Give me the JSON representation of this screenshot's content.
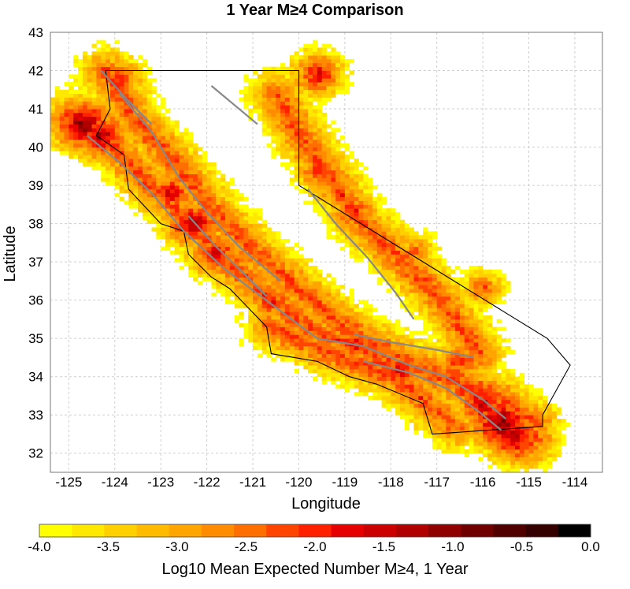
{
  "chart_data": {
    "type": "heatmap",
    "title": "1 Year M≥4 Comparison",
    "xlabel": "Longitude",
    "ylabel": "Latitude",
    "xlim": [
      -125.4,
      -113.4
    ],
    "ylim": [
      31.5,
      43.0
    ],
    "x_ticks": [
      "-125",
      "-124",
      "-123",
      "-122",
      "-121",
      "-120",
      "-119",
      "-118",
      "-117",
      "-116",
      "-115",
      "-114"
    ],
    "y_ticks": [
      "32",
      "33",
      "34",
      "35",
      "36",
      "37",
      "38",
      "39",
      "40",
      "41",
      "42",
      "43"
    ],
    "x_tick_values": [
      -125,
      -124,
      -123,
      -122,
      -121,
      -120,
      -119,
      -118,
      -117,
      -116,
      -115,
      -114
    ],
    "y_tick_values": [
      32,
      33,
      34,
      35,
      36,
      37,
      38,
      39,
      40,
      41,
      42,
      43
    ],
    "grid": true,
    "colorbar": {
      "label": "Log10 Mean Expected Number M≥4, 1 Year",
      "range": [
        -4.0,
        0.0
      ],
      "ticks": [
        "-4.0",
        "-3.5",
        "-3.0",
        "-2.5",
        "-2.0",
        "-1.5",
        "-1.0",
        "-0.5",
        "0.0"
      ],
      "tick_values": [
        -4.0,
        -3.5,
        -3.0,
        -2.5,
        -2.0,
        -1.5,
        -1.0,
        -0.5,
        0.0
      ],
      "colors": [
        "#ffff00",
        "#ffe800",
        "#ffd000",
        "#ffbb00",
        "#ffa500",
        "#ff8c00",
        "#ff6e00",
        "#ff4500",
        "#ff2000",
        "#e60000",
        "#cc0000",
        "#b00000",
        "#900000",
        "#700000",
        "#500000",
        "#340000",
        "#000000"
      ]
    },
    "hotspots": [
      {
        "lon": -124.7,
        "lat": 40.6,
        "value": -1.0
      },
      {
        "lon": -124.3,
        "lat": 40.3,
        "value": -1.2
      },
      {
        "lon": -123.9,
        "lat": 41.8,
        "value": -1.8
      },
      {
        "lon": -122.8,
        "lat": 38.8,
        "value": -1.5
      },
      {
        "lon": -122.3,
        "lat": 38.0,
        "value": -1.3
      },
      {
        "lon": -121.8,
        "lat": 37.2,
        "value": -1.5
      },
      {
        "lon": -120.6,
        "lat": 36.0,
        "value": -1.8
      },
      {
        "lon": -118.8,
        "lat": 38.3,
        "value": -1.8
      },
      {
        "lon": -119.6,
        "lat": 41.9,
        "value": -1.6
      },
      {
        "lon": -119.6,
        "lat": 39.4,
        "value": -2.0
      },
      {
        "lon": -118.8,
        "lat": 34.9,
        "value": -1.7
      },
      {
        "lon": -117.8,
        "lat": 34.2,
        "value": -1.6
      },
      {
        "lon": -116.5,
        "lat": 34.4,
        "value": -1.8
      },
      {
        "lon": -116.0,
        "lat": 33.3,
        "value": -1.4
      },
      {
        "lon": -115.6,
        "lat": 32.8,
        "value": -0.9
      },
      {
        "lon": -115.3,
        "lat": 32.4,
        "value": -1.2
      },
      {
        "lon": -117.5,
        "lat": 37.3,
        "value": -2.3
      },
      {
        "lon": -116.0,
        "lat": 36.3,
        "value": -2.2
      }
    ]
  }
}
